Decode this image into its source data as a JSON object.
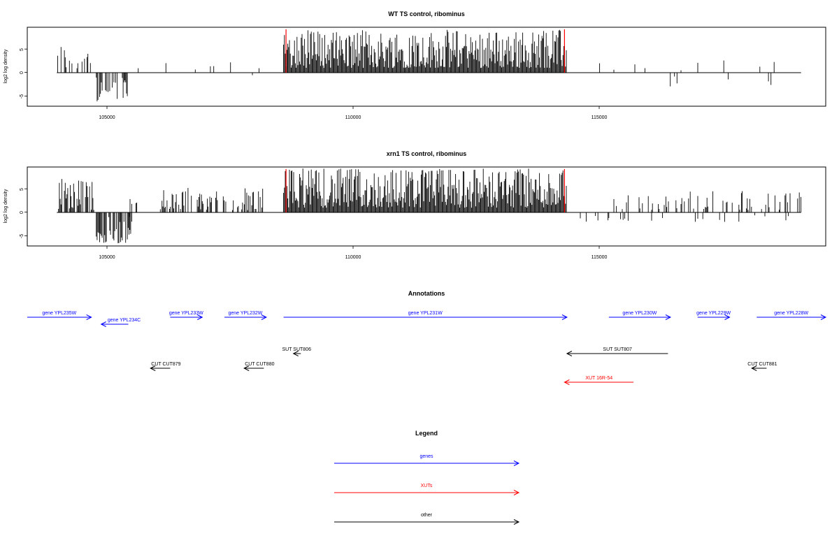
{
  "colors": {
    "gene": "#0000ff",
    "xut": "#ff0000",
    "other": "#000000",
    "marker": "#ff0000"
  },
  "chart_data": [
    {
      "type": "bar",
      "title": "WT TS control, ribominus",
      "ylabel": "log2 log density",
      "yticks": [
        "-5",
        "0",
        "5"
      ],
      "xticks": [
        "105000",
        "110000",
        "115000"
      ],
      "xlim": [
        103400,
        119600
      ],
      "ylim": [
        -7,
        9.5
      ],
      "markers_x": [
        108650,
        114300
      ],
      "regions": [
        {
          "x0": 104000,
          "x1": 104700,
          "density": 0.35,
          "min": 0.5,
          "max": 6.3,
          "neg": false
        },
        {
          "x0": 104800,
          "x1": 105500,
          "density": 0.55,
          "min": -6.0,
          "max": -0.6,
          "neg": true
        },
        {
          "x0": 105600,
          "x1": 108300,
          "density": 0.06,
          "min": 0.5,
          "max": 3.5,
          "neg": false
        },
        {
          "x0": 107900,
          "x1": 108200,
          "density": 0.15,
          "min": -2.8,
          "max": -0.5,
          "neg": true
        },
        {
          "x0": 108600,
          "x1": 114350,
          "density": 1.0,
          "min": 1.0,
          "max": 9.0,
          "neg": false
        },
        {
          "x0": 114400,
          "x1": 119100,
          "density": 0.03,
          "min": 0.5,
          "max": 2.8,
          "neg": false
        },
        {
          "x0": 115800,
          "x1": 118800,
          "density": 0.02,
          "min": -3.0,
          "max": -0.5,
          "neg": true
        }
      ]
    },
    {
      "type": "bar",
      "title": "xrn1 TS control, ribominus",
      "ylabel": "log2 log density",
      "yticks": [
        "-5",
        "0",
        "5"
      ],
      "xticks": [
        "105000",
        "110000",
        "115000"
      ],
      "xlim": [
        103400,
        119600
      ],
      "ylim": [
        -7,
        9.5
      ],
      "markers_x": [
        108650,
        114300
      ],
      "regions": [
        {
          "x0": 104000,
          "x1": 104750,
          "density": 0.8,
          "min": 0.5,
          "max": 7.6,
          "neg": false
        },
        {
          "x0": 104800,
          "x1": 105500,
          "density": 0.8,
          "min": -6.5,
          "max": -0.8,
          "neg": true
        },
        {
          "x0": 105400,
          "x1": 105700,
          "density": 0.3,
          "min": -2.0,
          "max": -0.5,
          "neg": true
        },
        {
          "x0": 105400,
          "x1": 105700,
          "density": 0.3,
          "min": 0.5,
          "max": 3.5,
          "neg": false
        },
        {
          "x0": 106100,
          "x1": 108200,
          "density": 0.5,
          "min": 0.5,
          "max": 5.3,
          "neg": false
        },
        {
          "x0": 108600,
          "x1": 114350,
          "density": 1.0,
          "min": 1.0,
          "max": 9.2,
          "neg": false
        },
        {
          "x0": 114400,
          "x1": 115600,
          "density": 0.12,
          "min": -2.0,
          "max": -0.5,
          "neg": true
        },
        {
          "x0": 115200,
          "x1": 119100,
          "density": 0.25,
          "min": 0.5,
          "max": 4.5,
          "neg": false
        },
        {
          "x0": 115200,
          "x1": 119000,
          "density": 0.06,
          "min": -2.0,
          "max": -0.5,
          "neg": true
        }
      ]
    }
  ],
  "annotations": {
    "title": "Annotations",
    "rows": [
      [
        {
          "label": "gene YPL235W",
          "type": "gene",
          "x0": 103400,
          "x1": 104700,
          "dir": "right"
        },
        {
          "label": "gene YPL233W",
          "type": "gene",
          "x0": 106300,
          "x1": 106950,
          "dir": "right"
        },
        {
          "label": "gene YPL232W",
          "type": "gene",
          "x0": 107400,
          "x1": 108250,
          "dir": "right"
        },
        {
          "label": "gene YPL231W",
          "type": "gene",
          "x0": 108600,
          "x1": 114350,
          "dir": "right"
        },
        {
          "label": "gene YPL230W",
          "type": "gene",
          "x0": 115200,
          "x1": 116450,
          "dir": "right"
        },
        {
          "label": "gene YPL229W",
          "type": "gene",
          "x0": 117000,
          "x1": 117650,
          "dir": "right"
        },
        {
          "label": "gene YPL228W",
          "type": "gene",
          "x0": 118200,
          "x1": 119600,
          "dir": "right"
        }
      ],
      [
        {
          "label": "gene YPL234C",
          "type": "gene",
          "x0": 104900,
          "x1": 105450,
          "dir": "left"
        }
      ],
      [
        {
          "label": "SUT SUT806",
          "type": "other",
          "x0": 108800,
          "x1": 108950,
          "dir": "left"
        },
        {
          "label": "SUT SUT807",
          "type": "other",
          "x0": 114350,
          "x1": 116400,
          "dir": "left"
        }
      ],
      [
        {
          "label": "CUT CUT879",
          "type": "other",
          "x0": 105900,
          "x1": 106300,
          "dir": "left"
        },
        {
          "label": "CUT CUT880",
          "type": "other",
          "x0": 107800,
          "x1": 108200,
          "dir": "left"
        },
        {
          "label": "CUT CUT881",
          "type": "other",
          "x0": 118100,
          "x1": 118400,
          "dir": "left"
        }
      ],
      [
        {
          "label": "XUT 16R-54",
          "type": "xut",
          "x0": 114300,
          "x1": 115700,
          "dir": "left"
        }
      ]
    ]
  },
  "legend": {
    "title": "Legend",
    "items": [
      {
        "label": "genes",
        "type": "gene"
      },
      {
        "label": "XUTs",
        "type": "xut"
      },
      {
        "label": "other",
        "type": "other"
      }
    ]
  }
}
